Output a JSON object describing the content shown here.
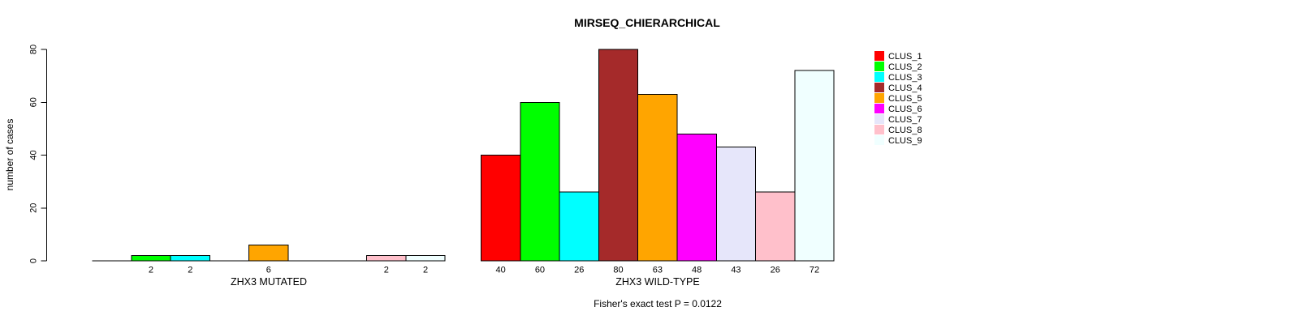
{
  "background_color": "#FFFFFF",
  "chart_data": {
    "type": "bar",
    "title": "MIRSEQ_CHIERARCHICAL",
    "ylabel": "number of cases",
    "xlabel": "",
    "ylim": [
      0,
      80
    ],
    "yticks": [
      0,
      20,
      40,
      60,
      80
    ],
    "grid": false,
    "note": "Fisher's exact test P = 0.0122",
    "categories": [
      "CLUS_1",
      "CLUS_2",
      "CLUS_3",
      "CLUS_4",
      "CLUS_5",
      "CLUS_6",
      "CLUS_7",
      "CLUS_8",
      "CLUS_9"
    ],
    "cluster_colors": [
      "#FF0000",
      "#00FF00",
      "#00FFFF",
      "#A52A2A",
      "#FFA500",
      "#FF00FF",
      "#E6E6FA",
      "#FFC0CB",
      "#F0FFFF"
    ],
    "bar_border_color": "#000000",
    "bar_label_rule": "value shown under each non-zero bar only",
    "groups": [
      {
        "xlabel": "ZHX3 MUTATED",
        "values": [
          0,
          2,
          2,
          0,
          6,
          0,
          0,
          2,
          2
        ]
      },
      {
        "xlabel": "ZHX3 WILD-TYPE",
        "values": [
          40,
          60,
          26,
          80,
          63,
          48,
          43,
          26,
          72
        ]
      }
    ],
    "legend": {
      "position": "top-right",
      "entries": [
        {
          "label": "CLUS_1",
          "color": "#FF0000"
        },
        {
          "label": "CLUS_2",
          "color": "#00FF00"
        },
        {
          "label": "CLUS_3",
          "color": "#00FFFF"
        },
        {
          "label": "CLUS_4",
          "color": "#A52A2A"
        },
        {
          "label": "CLUS_5",
          "color": "#FFA500"
        },
        {
          "label": "CLUS_6",
          "color": "#FF00FF"
        },
        {
          "label": "CLUS_7",
          "color": "#E6E6FA"
        },
        {
          "label": "CLUS_8",
          "color": "#FFC0CB"
        },
        {
          "label": "CLUS_9",
          "color": "#F0FFFF"
        }
      ]
    }
  }
}
